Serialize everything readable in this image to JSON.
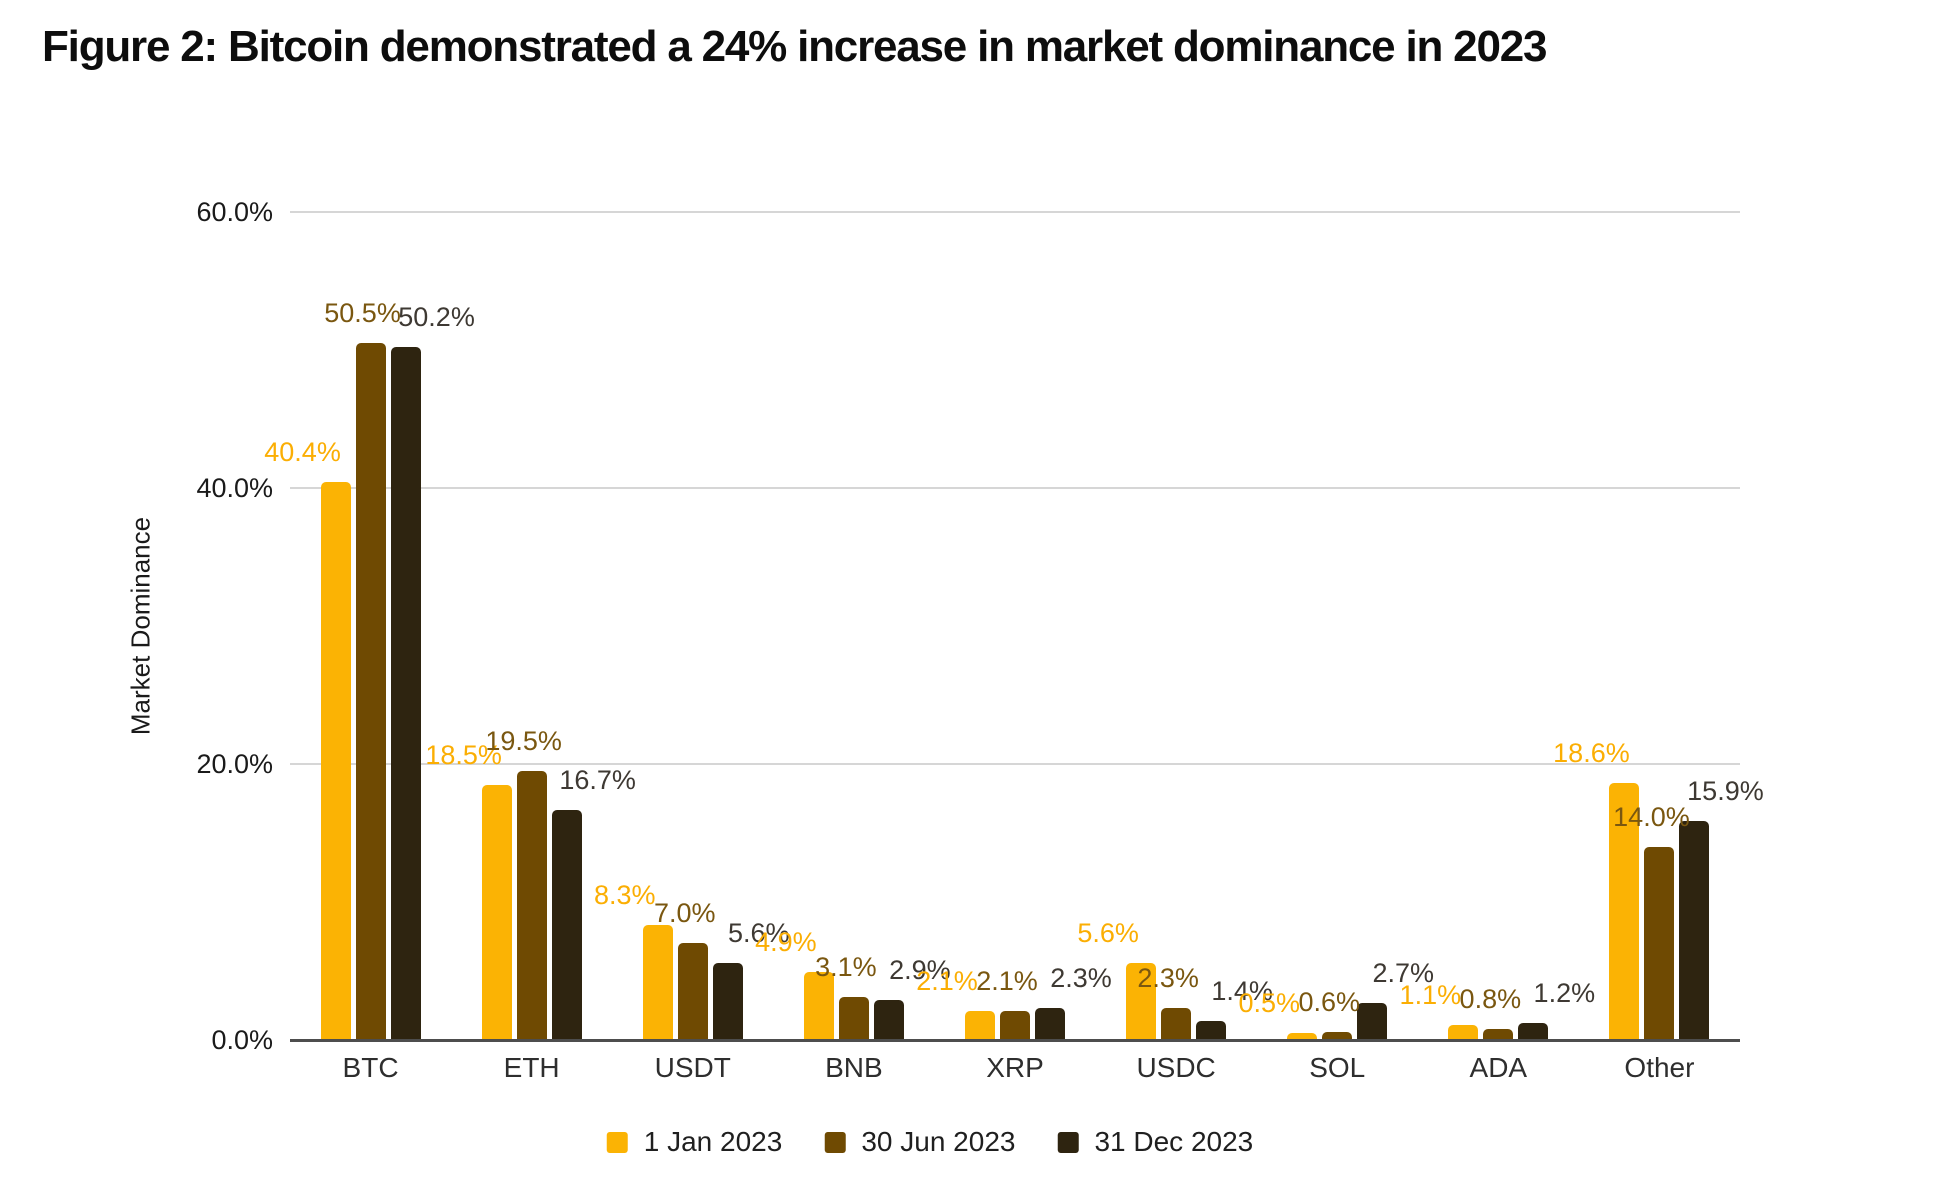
{
  "title": "Figure 2: Bitcoin demonstrated a 24% increase in market dominance in 2023",
  "chart_data": {
    "type": "bar",
    "title": "Figure 2: Bitcoin demonstrated a 24% increase in market dominance in 2023",
    "xlabel": "",
    "ylabel": "Market Dominance",
    "ylim": [
      0,
      60
    ],
    "grid": true,
    "legend_position": "bottom",
    "ytick_values": [
      0,
      20,
      40,
      60
    ],
    "ytick_labels": [
      "0.0%",
      "20.0%",
      "40.0%",
      "60.0%"
    ],
    "categories": [
      "BTC",
      "ETH",
      "USDT",
      "BNB",
      "XRP",
      "USDC",
      "SOL",
      "ADA",
      "Other"
    ],
    "series": [
      {
        "name": "1 Jan 2023",
        "color": "#FBB304",
        "label_color": "#FBAE03",
        "values": [
          40.4,
          18.5,
          8.3,
          4.9,
          2.1,
          5.6,
          0.5,
          1.1,
          18.6
        ],
        "labels": [
          "40.4%",
          "18.5%",
          "8.3%",
          "4.9%",
          "2.1%",
          "5.6%",
          "0.5%",
          "1.1%",
          "18.6%"
        ]
      },
      {
        "name": "30 Jun 2023",
        "color": "#6F4A02",
        "label_color": "#7A5710",
        "values": [
          50.5,
          19.5,
          7.0,
          3.1,
          2.1,
          2.3,
          0.6,
          0.8,
          14.0
        ],
        "labels": [
          "50.5%",
          "19.5%",
          "7.0%",
          "3.1%",
          "2.1%",
          "2.3%",
          "0.6%",
          "0.8%",
          "14.0%"
        ]
      },
      {
        "name": "31 Dec 2023",
        "color": "#2E2410",
        "label_color": "#3E3933",
        "values": [
          50.2,
          16.7,
          5.6,
          2.9,
          2.3,
          1.4,
          2.7,
          1.2,
          15.9
        ],
        "labels": [
          "50.2%",
          "16.7%",
          "5.6%",
          "2.9%",
          "2.3%",
          "1.4%",
          "2.7%",
          "1.2%",
          "15.9%"
        ]
      }
    ]
  }
}
